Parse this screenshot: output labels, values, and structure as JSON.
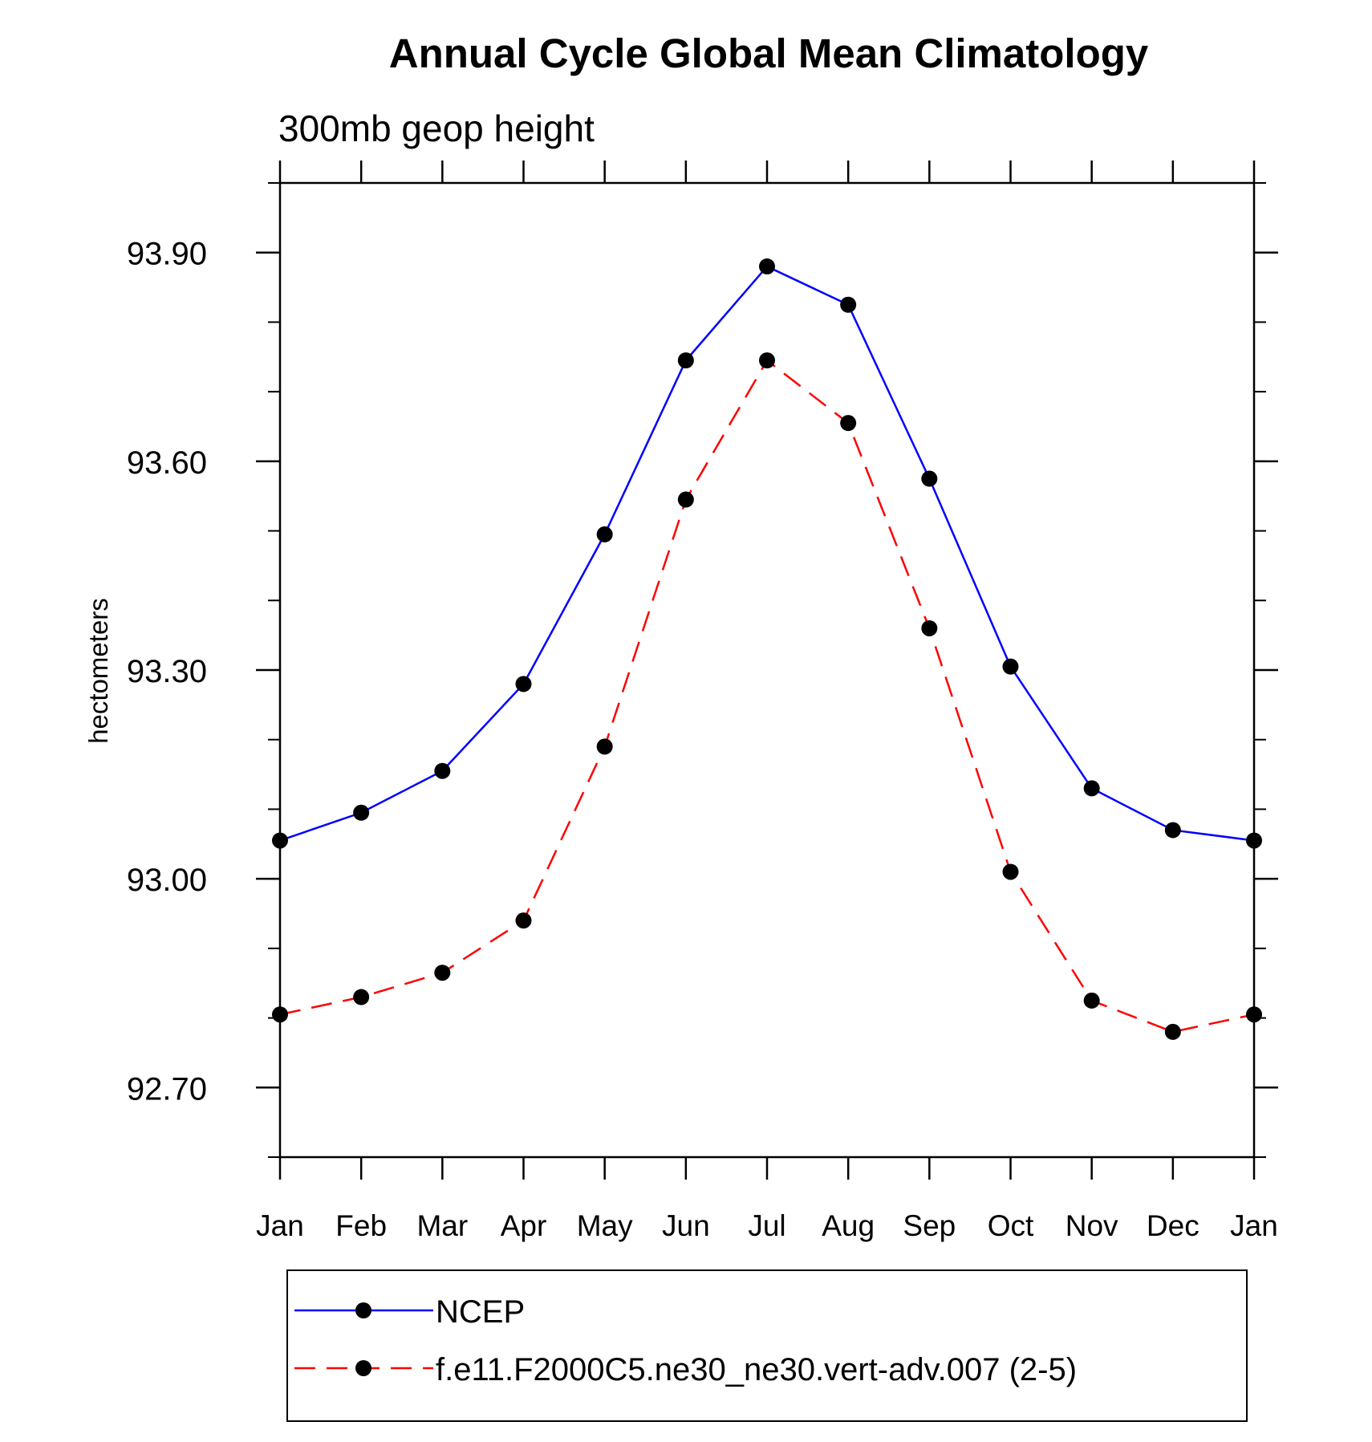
{
  "chart_data": {
    "type": "line",
    "title": "Annual Cycle Global Mean Climatology",
    "subtitle": "300mb geop height",
    "ylabel": "hectometers",
    "xlabel": "",
    "categories": [
      "Jan",
      "Feb",
      "Mar",
      "Apr",
      "May",
      "Jun",
      "Jul",
      "Aug",
      "Sep",
      "Oct",
      "Nov",
      "Dec",
      "Jan"
    ],
    "ylim": [
      92.6,
      94.0
    ],
    "yticks": [
      "92.70",
      "93.00",
      "93.30",
      "93.60",
      "93.90"
    ],
    "ytick_values": [
      92.7,
      93.0,
      93.3,
      93.6,
      93.9
    ],
    "grid": false,
    "legend_position": "bottom",
    "series": [
      {
        "name": "NCEP",
        "color": "#0000ff",
        "style": "solid",
        "marker": "filled-circle",
        "values": [
          93.055,
          93.095,
          93.155,
          93.28,
          93.495,
          93.745,
          93.88,
          93.825,
          93.575,
          93.305,
          93.13,
          93.07,
          93.055
        ]
      },
      {
        "name": "f.e11.F2000C5.ne30_ne30.vert-adv.007 (2-5)",
        "color": "#ff0000",
        "style": "dashed",
        "marker": "filled-circle",
        "values": [
          92.805,
          92.83,
          92.865,
          92.94,
          93.19,
          93.545,
          93.745,
          93.655,
          93.36,
          93.01,
          92.825,
          92.78,
          92.805
        ]
      }
    ]
  }
}
